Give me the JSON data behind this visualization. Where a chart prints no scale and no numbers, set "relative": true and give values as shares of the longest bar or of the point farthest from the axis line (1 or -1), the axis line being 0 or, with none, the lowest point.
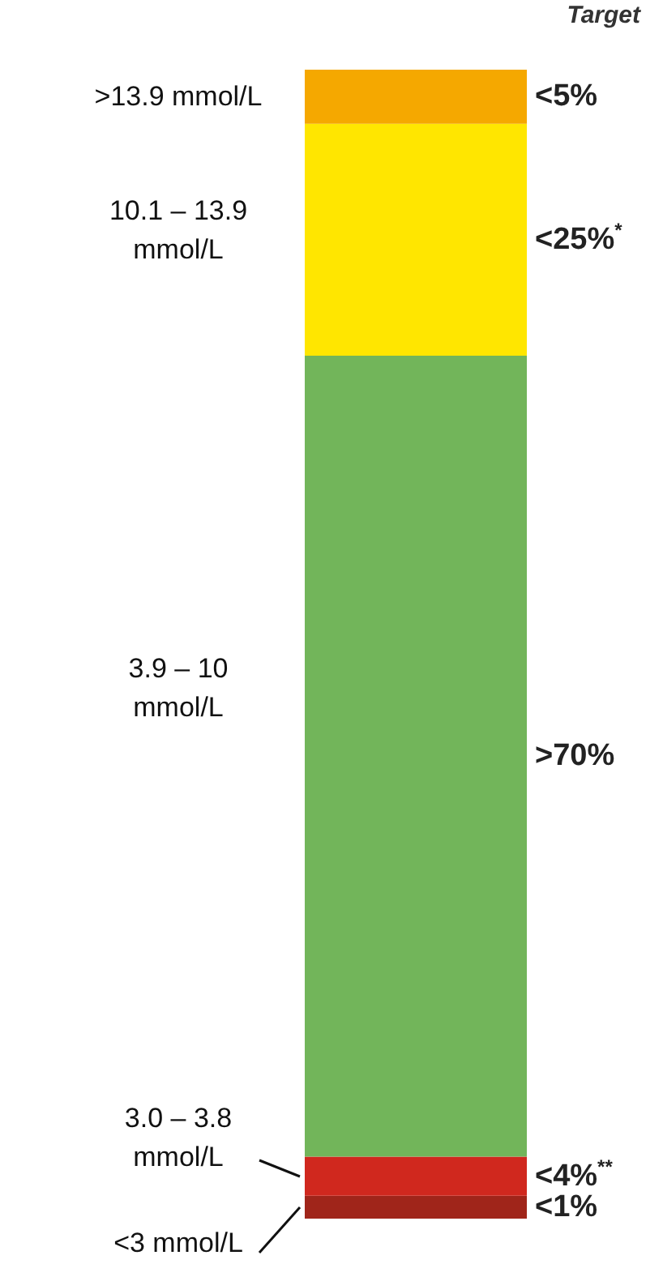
{
  "chart_data": {
    "type": "bar",
    "stacked": true,
    "relative": true,
    "legend": false,
    "categories": [
      null
    ],
    "annotations": [
      "Target",
      "<1%",
      "<4%$^{**}$",
      ">70%",
      "<25%$^{*}$",
      "<5%"
    ],
    "series": [
      {
        "name": "<3 mmol/L",
        "color": "#a0251a",
        "values": [
          0.02
        ]
      },
      {
        "name": "3.0 – 3.8 mmol/L",
        "color": "#d0281e",
        "values": [
          0.034
        ]
      },
      {
        "name": "3.9 – 10 mmol/L",
        "color": "#72b55a",
        "values": [
          0.697
        ]
      },
      {
        "name": "10.1 – 13.9 mmol/L",
        "color": "#ffe600",
        "values": [
          0.202
        ]
      },
      {
        "name": ">13.9 mmol/L",
        "color": "#f5a800",
        "values": [
          0.047
        ]
      }
    ]
  }
}
